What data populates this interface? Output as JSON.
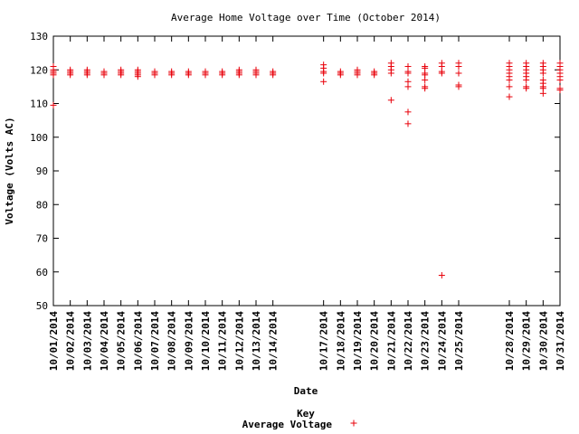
{
  "chart_data": {
    "type": "scatter",
    "title": "Average Home Voltage over Time (October 2014)",
    "xlabel": "Date",
    "ylabel": "Voltage (Volts AC)",
    "ylim": [
      50,
      130
    ],
    "yticks": [
      50,
      60,
      70,
      80,
      90,
      100,
      110,
      120,
      130
    ],
    "xlim": [
      1,
      31
    ],
    "xticks": [
      "10/01/2014",
      "10/02/2014",
      "10/03/2014",
      "10/04/2014",
      "10/05/2014",
      "10/06/2014",
      "10/07/2014",
      "10/08/2014",
      "10/09/2014",
      "10/10/2014",
      "10/11/2014",
      "10/12/2014",
      "10/13/2014",
      "10/14/2014",
      "10/17/2014",
      "10/18/2014",
      "10/19/2014",
      "10/20/2014",
      "10/21/2014",
      "10/22/2014",
      "10/23/2014",
      "10/24/2014",
      "10/25/2014",
      "10/28/2014",
      "10/29/2014",
      "10/30/2014",
      "10/31/2014"
    ],
    "grid": false,
    "legend": {
      "title": "Key",
      "position": "bottom-center"
    },
    "marker": "+",
    "color": "#e8000a",
    "series": [
      {
        "name": "Average Voltage",
        "points": [
          {
            "x": "10/01/2014",
            "y": [
              109.5,
              118.5,
              119,
              119.5,
              120,
              121
            ]
          },
          {
            "x": "10/02/2014",
            "y": [
              118.5,
              119,
              119.5,
              120
            ]
          },
          {
            "x": "10/03/2014",
            "y": [
              118.5,
              119,
              119.5,
              120
            ]
          },
          {
            "x": "10/04/2014",
            "y": [
              118.5,
              119,
              119.5
            ]
          },
          {
            "x": "10/05/2014",
            "y": [
              118.5,
              119,
              119.5,
              120
            ]
          },
          {
            "x": "10/06/2014",
            "y": [
              118,
              118.5,
              119,
              119.5,
              120
            ]
          },
          {
            "x": "10/07/2014",
            "y": [
              118.5,
              119,
              119.5
            ]
          },
          {
            "x": "10/08/2014",
            "y": [
              118.5,
              119,
              119.5
            ]
          },
          {
            "x": "10/09/2014",
            "y": [
              118.5,
              119,
              119.5
            ]
          },
          {
            "x": "10/10/2014",
            "y": [
              118.5,
              119,
              119.5
            ]
          },
          {
            "x": "10/11/2014",
            "y": [
              118.5,
              119,
              119.5
            ]
          },
          {
            "x": "10/12/2014",
            "y": [
              118.5,
              119,
              119.5,
              120
            ]
          },
          {
            "x": "10/13/2014",
            "y": [
              118.5,
              119,
              119.5,
              120
            ]
          },
          {
            "x": "10/14/2014",
            "y": [
              118.5,
              119,
              119.5
            ]
          },
          {
            "x": "10/17/2014",
            "y": [
              116.5,
              119,
              119.5,
              120.5,
              121.5
            ]
          },
          {
            "x": "10/18/2014",
            "y": [
              118.5,
              119,
              119.5
            ]
          },
          {
            "x": "10/19/2014",
            "y": [
              118.5,
              119,
              119.5,
              120
            ]
          },
          {
            "x": "10/20/2014",
            "y": [
              118.5,
              119,
              119.5
            ]
          },
          {
            "x": "10/21/2014",
            "y": [
              111,
              119,
              120,
              121,
              122
            ]
          },
          {
            "x": "10/22/2014",
            "y": [
              104,
              107.5,
              115,
              116.5,
              119,
              119.5,
              121
            ]
          },
          {
            "x": "10/23/2014",
            "y": [
              114.5,
              115,
              117,
              118.5,
              119,
              120.5,
              121
            ]
          },
          {
            "x": "10/24/2014",
            "y": [
              59,
              119,
              119.5,
              121,
              122
            ]
          },
          {
            "x": "10/25/2014",
            "y": [
              115,
              115.5,
              119,
              121,
              122
            ]
          },
          {
            "x": "10/28/2014",
            "y": [
              112,
              115,
              117,
              118,
              119,
              120,
              121,
              122
            ]
          },
          {
            "x": "10/29/2014",
            "y": [
              114.5,
              115,
              117,
              118,
              119,
              120,
              121,
              122
            ]
          },
          {
            "x": "10/30/2014",
            "y": [
              113,
              114.5,
              115,
              116,
              117,
              119,
              120,
              121,
              122
            ]
          },
          {
            "x": "10/31/2014",
            "y": [
              114,
              114.5,
              117,
              118,
              119,
              120,
              121,
              122
            ]
          }
        ]
      }
    ]
  }
}
